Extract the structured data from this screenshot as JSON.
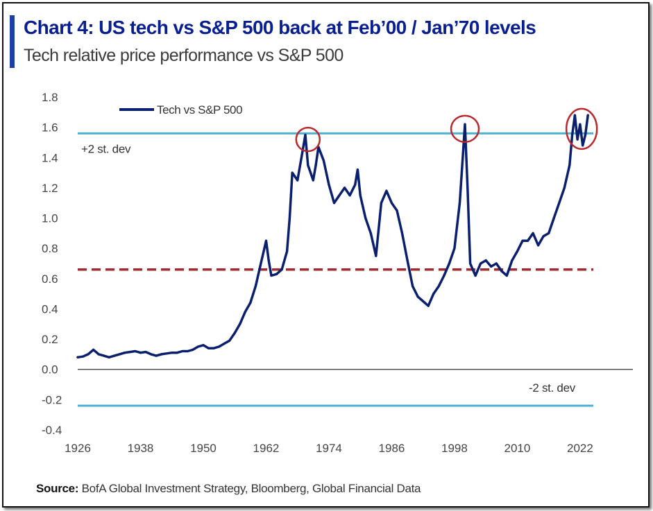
{
  "title": "Chart 4: US tech vs S&P 500 back at Feb’00 / Jan’70 levels",
  "subtitle": "Tech relative price performance vs S&P 500",
  "source": {
    "label": "Source:",
    "text": "BofA Global Investment Strategy, Bloomberg, Global Financial Data"
  },
  "colors": {
    "series": "#0a1f6e",
    "std_lines": "#4fb0d6",
    "mean_line": "#a22b30",
    "highlight_circles": "#b8282c",
    "title": "#0a1f8f"
  },
  "chart_data": {
    "type": "line",
    "title": "Chart 4: US tech vs S&P 500 back at Feb’00 / Jan’70 levels",
    "subtitle": "Tech relative price performance vs S&P 500",
    "xlim": [
      1926,
      2024
    ],
    "ylim": [
      -0.4,
      1.8
    ],
    "x_ticks": [
      1926,
      1938,
      1950,
      1962,
      1974,
      1986,
      1998,
      2010,
      2022
    ],
    "y_ticks": [
      1.8,
      1.6,
      1.4,
      1.2,
      1.0,
      0.8,
      0.6,
      0.4,
      0.2,
      0.0,
      -0.2,
      -0.4
    ],
    "y_tick_labels": [
      "1.8",
      "1.6",
      "1.4",
      "1.2",
      "1.0",
      "0.8",
      "0.6",
      "0.4",
      "0.2",
      "0.0",
      "-0.2",
      "-0.4"
    ],
    "legend": {
      "label": "Tech vs  S&P 500",
      "placement": "top-left"
    },
    "grid": false,
    "series": [
      {
        "name": "Tech vs  S&P 500",
        "points": [
          [
            1926,
            0.08
          ],
          [
            1927,
            0.085
          ],
          [
            1928,
            0.1
          ],
          [
            1929,
            0.13
          ],
          [
            1930,
            0.1
          ],
          [
            1931,
            0.09
          ],
          [
            1932,
            0.08
          ],
          [
            1933,
            0.09
          ],
          [
            1934,
            0.1
          ],
          [
            1935,
            0.11
          ],
          [
            1936,
            0.115
          ],
          [
            1937,
            0.12
          ],
          [
            1938,
            0.11
          ],
          [
            1939,
            0.115
          ],
          [
            1940,
            0.1
          ],
          [
            1941,
            0.09
          ],
          [
            1942,
            0.1
          ],
          [
            1943,
            0.105
          ],
          [
            1944,
            0.11
          ],
          [
            1945,
            0.11
          ],
          [
            1946,
            0.12
          ],
          [
            1947,
            0.12
          ],
          [
            1948,
            0.13
          ],
          [
            1949,
            0.15
          ],
          [
            1950,
            0.16
          ],
          [
            1951,
            0.14
          ],
          [
            1952,
            0.14
          ],
          [
            1953,
            0.15
          ],
          [
            1954,
            0.17
          ],
          [
            1955,
            0.19
          ],
          [
            1956,
            0.24
          ],
          [
            1957,
            0.3
          ],
          [
            1958,
            0.38
          ],
          [
            1959,
            0.44
          ],
          [
            1960,
            0.55
          ],
          [
            1961,
            0.7
          ],
          [
            1962,
            0.85
          ],
          [
            1962.5,
            0.72
          ],
          [
            1963,
            0.62
          ],
          [
            1964,
            0.63
          ],
          [
            1965,
            0.66
          ],
          [
            1966,
            0.78
          ],
          [
            1966.5,
            1.0
          ],
          [
            1967,
            1.3
          ],
          [
            1968,
            1.25
          ],
          [
            1969,
            1.45
          ],
          [
            1969.5,
            1.55
          ],
          [
            1970,
            1.35
          ],
          [
            1971,
            1.25
          ],
          [
            1971.5,
            1.35
          ],
          [
            1972,
            1.47
          ],
          [
            1973,
            1.38
          ],
          [
            1974,
            1.22
          ],
          [
            1975,
            1.1
          ],
          [
            1976,
            1.15
          ],
          [
            1977,
            1.2
          ],
          [
            1978,
            1.15
          ],
          [
            1979,
            1.22
          ],
          [
            1979.5,
            1.32
          ],
          [
            1980,
            1.15
          ],
          [
            1981,
            1.0
          ],
          [
            1982,
            0.9
          ],
          [
            1983,
            0.75
          ],
          [
            1984,
            1.1
          ],
          [
            1985,
            1.18
          ],
          [
            1986,
            1.1
          ],
          [
            1987,
            1.05
          ],
          [
            1988,
            0.9
          ],
          [
            1989,
            0.72
          ],
          [
            1990,
            0.55
          ],
          [
            1991,
            0.48
          ],
          [
            1992,
            0.45
          ],
          [
            1993,
            0.42
          ],
          [
            1994,
            0.5
          ],
          [
            1995,
            0.55
          ],
          [
            1996,
            0.62
          ],
          [
            1997,
            0.7
          ],
          [
            1998,
            0.8
          ],
          [
            1999,
            1.1
          ],
          [
            2000,
            1.62
          ],
          [
            2000.5,
            1.2
          ],
          [
            2001,
            0.7
          ],
          [
            2002,
            0.62
          ],
          [
            2003,
            0.7
          ],
          [
            2004,
            0.72
          ],
          [
            2005,
            0.68
          ],
          [
            2006,
            0.7
          ],
          [
            2007,
            0.65
          ],
          [
            2008,
            0.62
          ],
          [
            2009,
            0.72
          ],
          [
            2010,
            0.78
          ],
          [
            2011,
            0.85
          ],
          [
            2012,
            0.85
          ],
          [
            2013,
            0.9
          ],
          [
            2014,
            0.82
          ],
          [
            2015,
            0.88
          ],
          [
            2016,
            0.9
          ],
          [
            2017,
            1.0
          ],
          [
            2018,
            1.1
          ],
          [
            2019,
            1.2
          ],
          [
            2020,
            1.35
          ],
          [
            2020.5,
            1.55
          ],
          [
            2021,
            1.68
          ],
          [
            2021.5,
            1.52
          ],
          [
            2022,
            1.62
          ],
          [
            2022.5,
            1.48
          ],
          [
            2023,
            1.55
          ],
          [
            2023.5,
            1.68
          ]
        ]
      }
    ],
    "reference_lines": [
      {
        "label": "+2 st. dev",
        "y": 1.56,
        "style": "solid",
        "color": "#4fb0d6"
      },
      {
        "label": "-2 st. dev",
        "y": -0.24,
        "style": "solid",
        "color": "#4fb0d6"
      },
      {
        "label": "",
        "y": 0.66,
        "style": "dashed",
        "color": "#a22b30"
      }
    ],
    "highlights": [
      {
        "x": 1970,
        "y": 1.52
      },
      {
        "x": 2000,
        "y": 1.59
      },
      {
        "x": 2022.3,
        "y": 1.59
      }
    ]
  }
}
